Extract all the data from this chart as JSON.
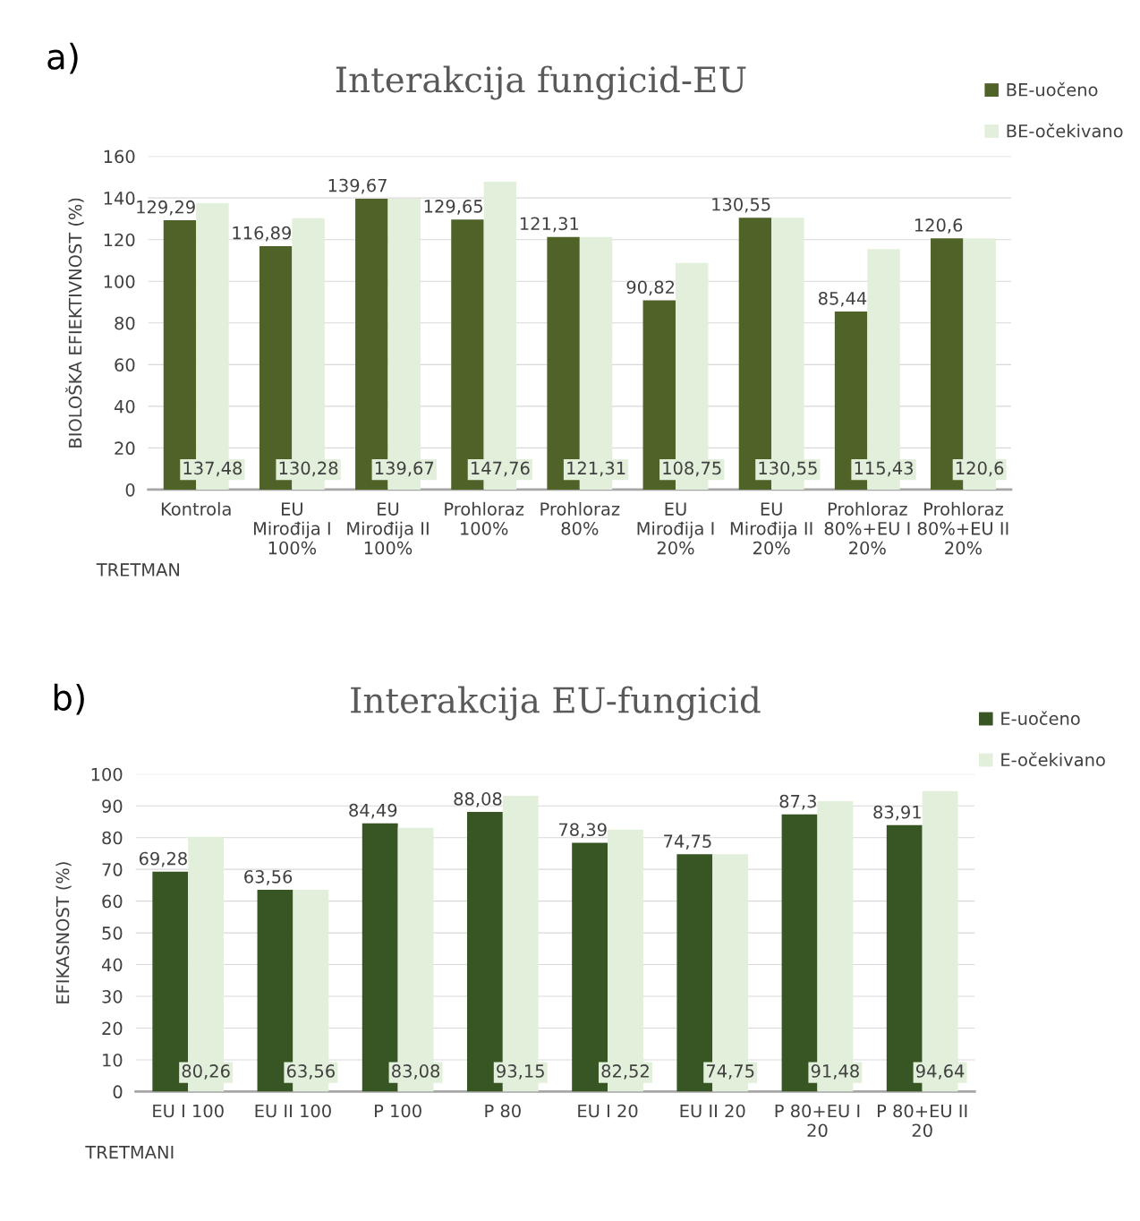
{
  "chart_data": [
    {
      "type": "bar",
      "title": "Interakcija fungicid-EU",
      "xlabel": "TRETMAN",
      "ylabel": "BIOLOŠKA EFIEKTIVNOST (%)",
      "annotations": [
        "a)"
      ],
      "categories": [
        "Kontrola",
        "EU\nMirođija I\n100%",
        "EU\nMirođija II\n100%",
        "Prohloraz\n100%",
        "Prohloraz\n80%",
        "EU\nMirođija I\n20%",
        "EU\nMirođija II\n20%",
        "Prohloraz\n80%+EU I\n20%",
        "Prohloraz\n80%+EU II\n20%"
      ],
      "series": [
        {
          "name": "BE-uočeno",
          "color": "#4f6228",
          "values": [
            129.29,
            116.89,
            139.67,
            129.65,
            121.31,
            90.82,
            130.55,
            85.44,
            120.6
          ],
          "value_labels": [
            "129,29",
            "116,89",
            "139,67",
            "129,65",
            "121,31",
            "90,82",
            "130,55",
            "85,44",
            "120,6"
          ]
        },
        {
          "name": "BE-očekivano",
          "color": "#e2efda",
          "values": [
            137.48,
            130.28,
            139.67,
            147.76,
            121.31,
            108.75,
            130.55,
            115.43,
            120.6
          ],
          "value_labels": [
            "137,48",
            "130,28",
            "139,67",
            "147,76",
            "121,31",
            "108,75",
            "130,55",
            "115,43",
            "120,6"
          ]
        }
      ],
      "ylim": [
        0,
        160
      ],
      "yticks": [
        0,
        20,
        40,
        60,
        80,
        100,
        120,
        140,
        160
      ],
      "grid": "y",
      "legend": "top right"
    },
    {
      "type": "bar",
      "title": "Interakcija EU-fungicid",
      "xlabel": "TRETMANI",
      "ylabel": "EFIKASNOST (%)",
      "annotations": [
        "b)"
      ],
      "categories": [
        "EU I 100",
        "EU II 100",
        "P 100",
        "P 80",
        "EU I 20",
        "EU II 20",
        "P 80+EU I\n20",
        "P 80+EU II\n20"
      ],
      "series": [
        {
          "name": "E-uočeno",
          "color": "#375623",
          "values": [
            69.28,
            63.56,
            84.49,
            88.08,
            78.39,
            74.75,
            87.3,
            83.91
          ],
          "value_labels": [
            "69,28",
            "63,56",
            "84,49",
            "88,08",
            "78,39",
            "74,75",
            "87,3",
            "83,91"
          ]
        },
        {
          "name": "E-očekivano",
          "color": "#e2efda",
          "values": [
            80.26,
            63.56,
            83.08,
            93.15,
            82.52,
            74.75,
            91.48,
            94.64
          ],
          "value_labels": [
            "80,26",
            "63,56",
            "83,08",
            "93,15",
            "82,52",
            "74,75",
            "91,48",
            "94,64"
          ]
        }
      ],
      "ylim": [
        0,
        100
      ],
      "yticks": [
        0,
        10,
        20,
        30,
        40,
        50,
        60,
        70,
        80,
        90,
        100
      ],
      "grid": "y",
      "legend": "top right"
    }
  ]
}
